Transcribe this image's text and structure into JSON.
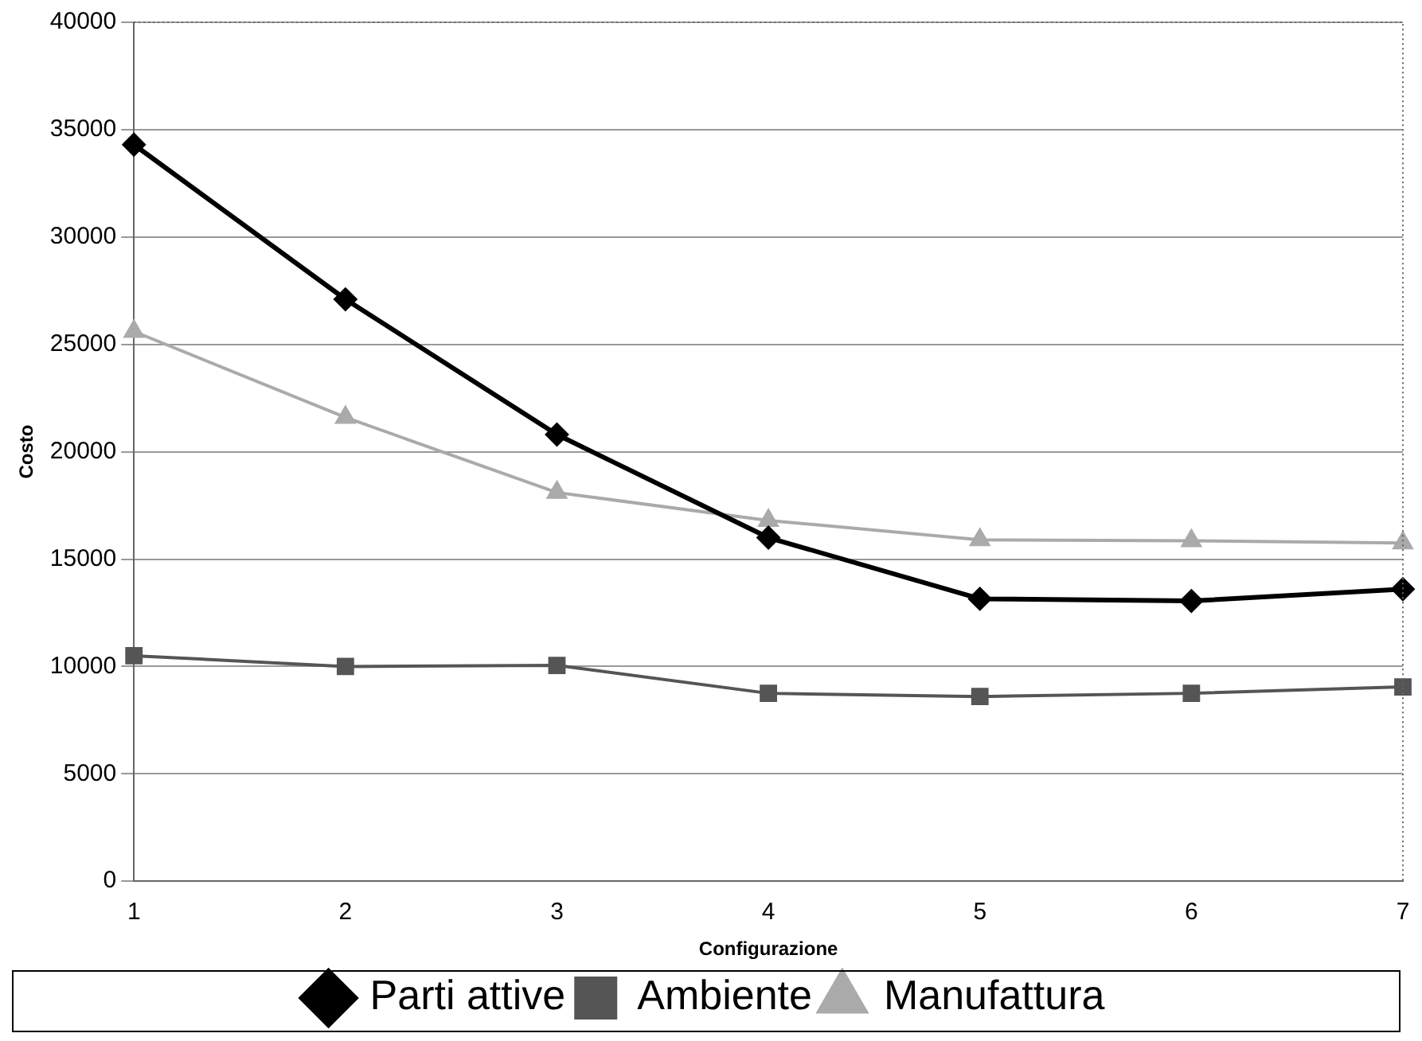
{
  "chart_data": {
    "type": "line",
    "xlabel": "Configurazione",
    "ylabel": "Costo",
    "categories": [
      "1",
      "2",
      "3",
      "4",
      "5",
      "6",
      "7"
    ],
    "series": [
      {
        "name": "Parti attive",
        "color": "#000000",
        "marker": "diamond",
        "values": [
          34300,
          27100,
          20800,
          16000,
          13150,
          13050,
          13600
        ]
      },
      {
        "name": "Ambiente",
        "color": "#555555",
        "marker": "square",
        "values": [
          10500,
          10000,
          10050,
          8750,
          8600,
          8750,
          9050
        ]
      },
      {
        "name": "Manufattura",
        "color": "#aaaaaa",
        "marker": "triangle",
        "values": [
          25600,
          21600,
          18100,
          16800,
          15900,
          15850,
          15750
        ]
      }
    ],
    "ylim": [
      0,
      40000
    ],
    "yticks": [
      0,
      5000,
      10000,
      15000,
      20000,
      25000,
      30000,
      35000,
      40000
    ],
    "grid": "y",
    "legend": "bottom",
    "line_style": "solid"
  }
}
